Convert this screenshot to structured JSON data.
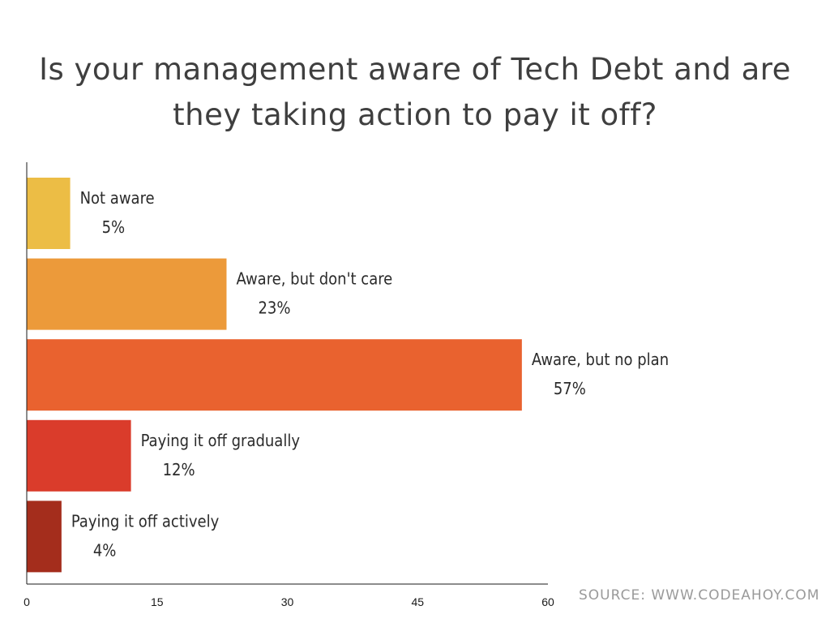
{
  "chart_data": {
    "type": "bar",
    "orientation": "horizontal",
    "title": "Is your management aware of Tech Debt and are they taking action to pay it off?",
    "categories": [
      "Not aware",
      "Aware, but don't care",
      "Aware, but no plan",
      "Paying it off gradually",
      "Paying it off actively"
    ],
    "values": [
      5,
      23,
      57,
      12,
      4
    ],
    "value_labels": [
      "5%",
      "23%",
      "57%",
      "12%",
      "4%"
    ],
    "colors": [
      "#ecbd45",
      "#ec9a3a",
      "#e9622f",
      "#da3c2b",
      "#a42d1c"
    ],
    "xlim": [
      0,
      60
    ],
    "xticks": [
      "0",
      "15",
      "30",
      "45",
      "60"
    ],
    "xlabel": "",
    "ylabel": "",
    "grid": false,
    "legend": "none"
  },
  "source_note": "SOURCE: WWW.CODEAHOY.COM"
}
